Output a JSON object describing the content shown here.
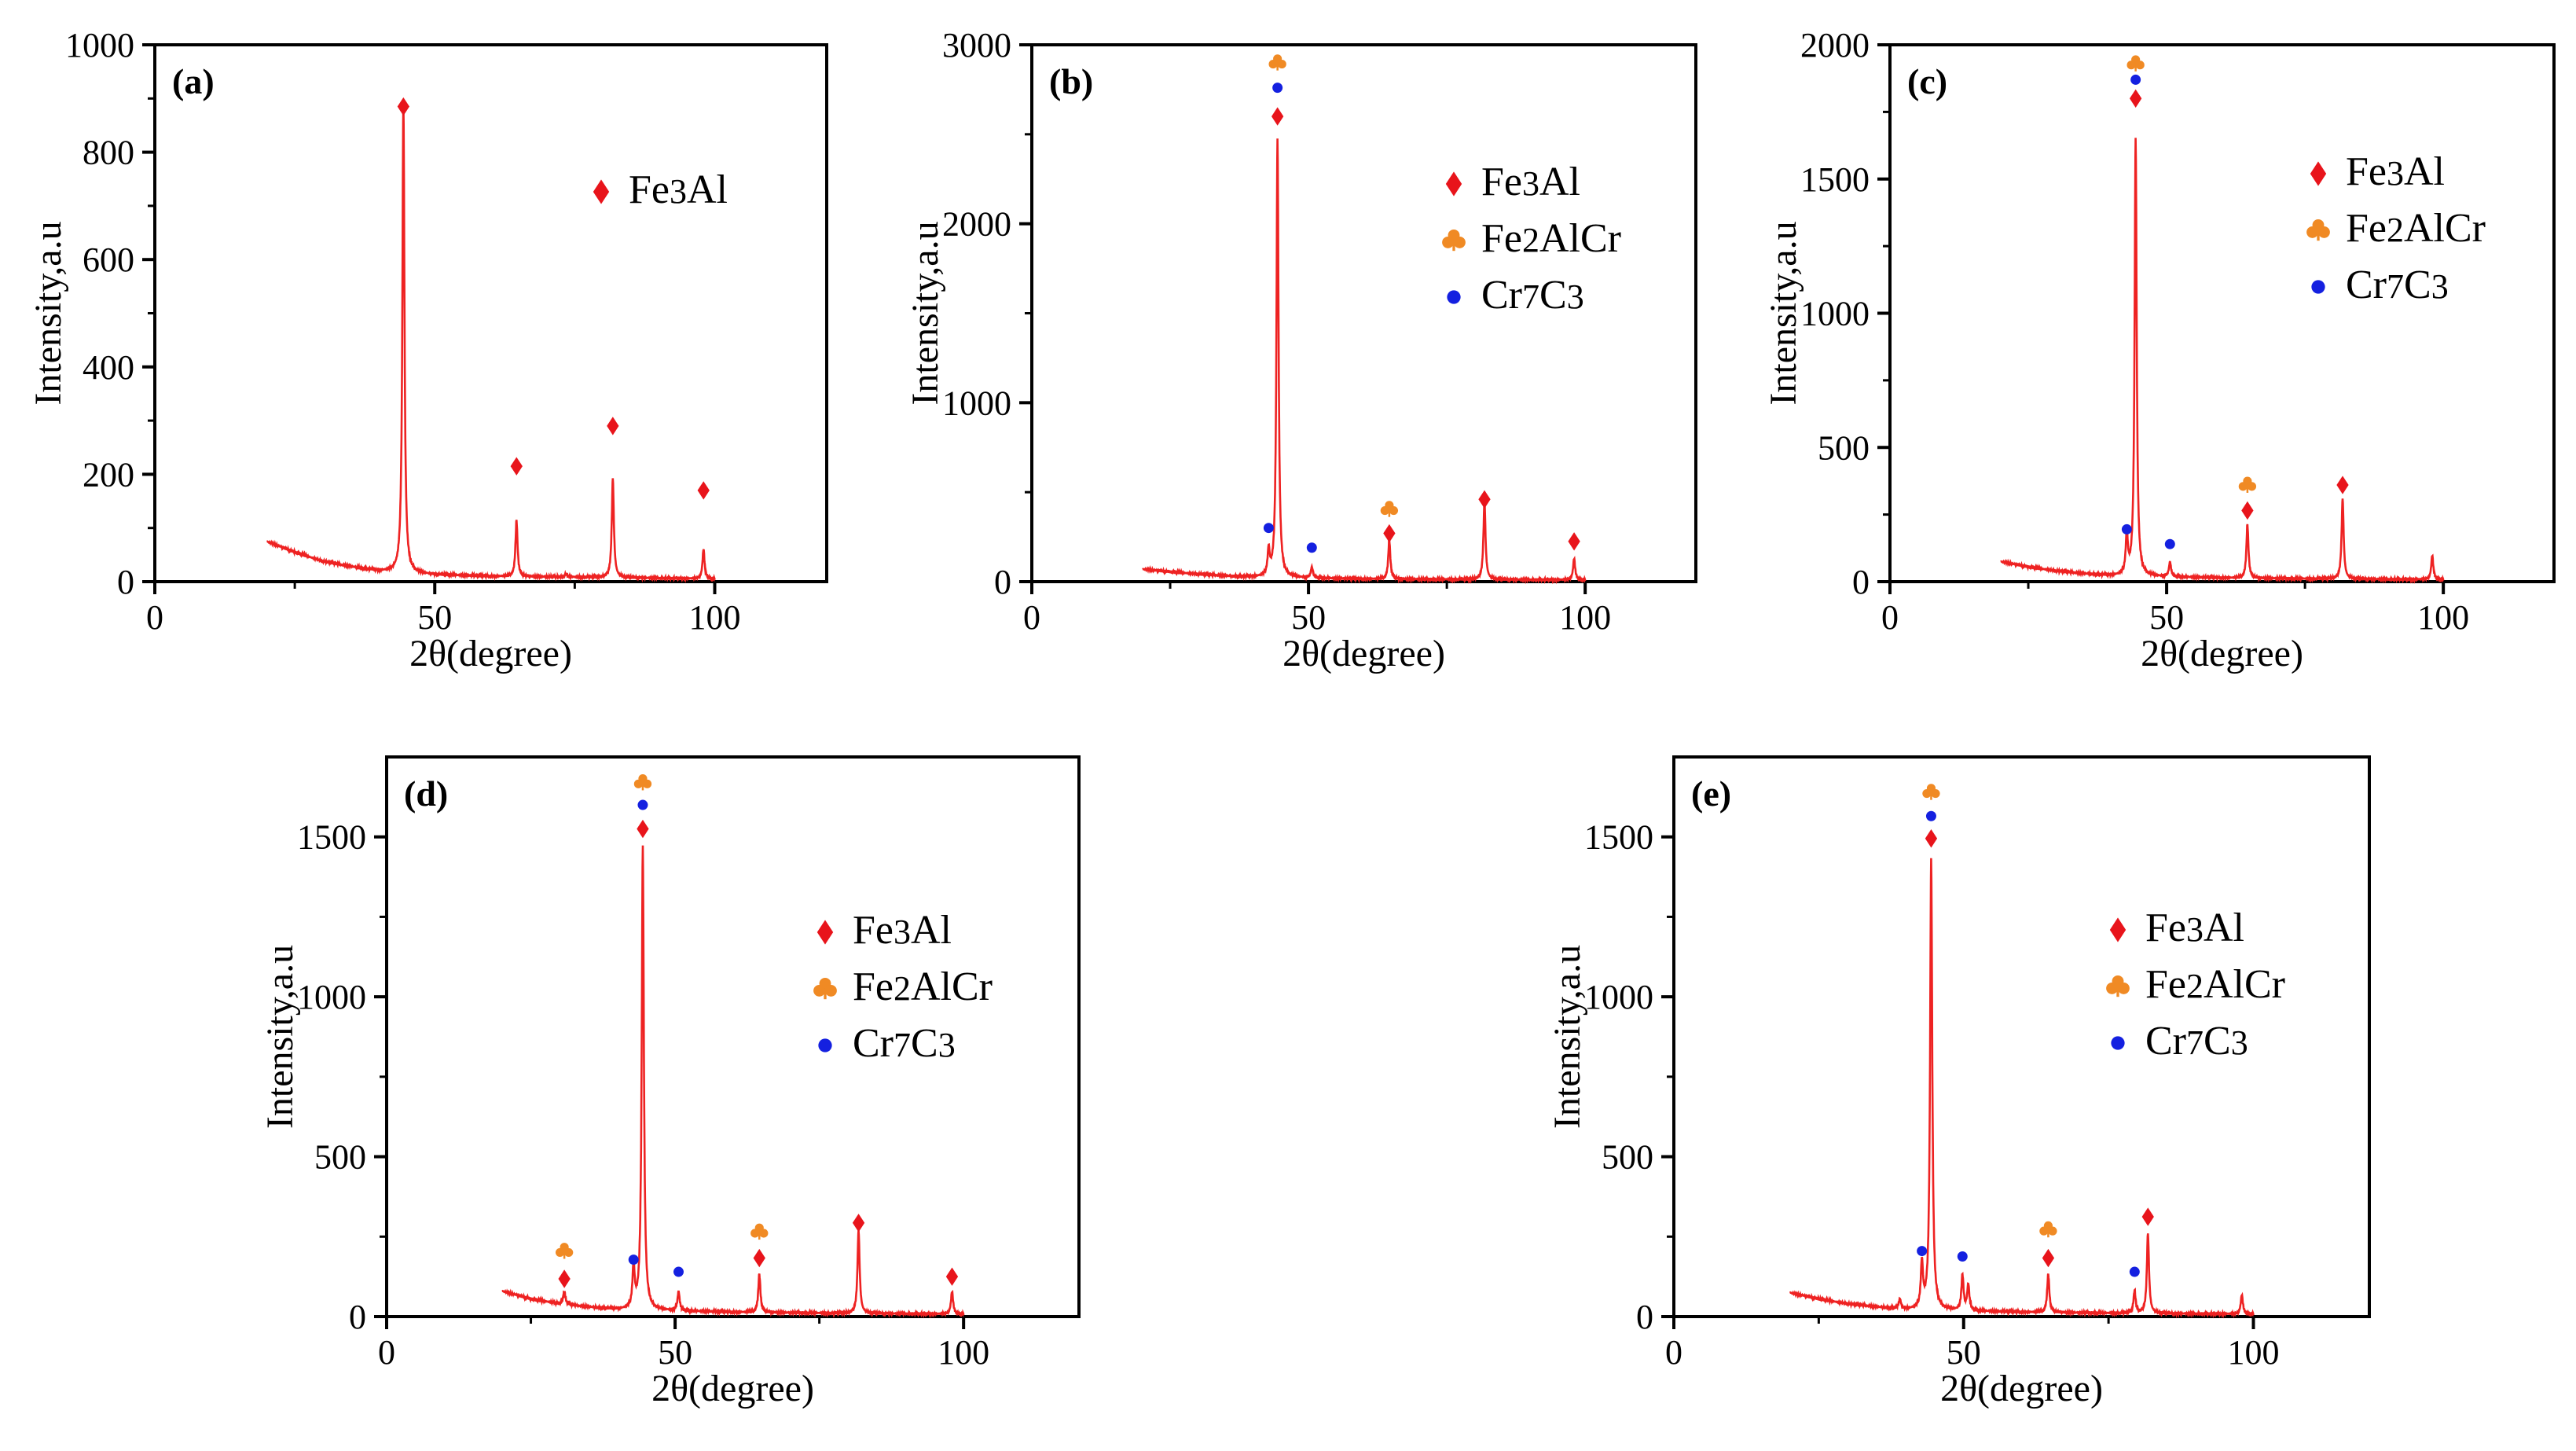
{
  "xlabel": "2θ(degree)",
  "ylabel": "Intensity,a.u",
  "colors": {
    "line": "#ee2222",
    "Fe3Al": "#e8141b",
    "Fe2AlCr": "#f08a24",
    "Cr7C3": "#1420e0"
  },
  "legend_labels": {
    "Fe3Al": [
      "Fe",
      "3",
      "Al"
    ],
    "Fe2AlCr": [
      "Fe",
      "2",
      "AlCr"
    ],
    "Cr7C3": [
      "Cr",
      "7",
      "C",
      "3"
    ]
  },
  "chart_data": [
    {
      "type": "line",
      "panel": "(a)",
      "xlim": [
        0,
        120
      ],
      "ylim": [
        0,
        1000
      ],
      "xticks": [
        0,
        50,
        100
      ],
      "yticks": [
        0,
        200,
        400,
        600,
        800,
        1000
      ],
      "legend": [
        "Fe3Al"
      ],
      "baseline": [
        [
          20,
          75
        ],
        [
          25,
          55
        ],
        [
          30,
          38
        ],
        [
          35,
          28
        ],
        [
          40,
          20
        ],
        [
          50,
          13
        ],
        [
          60,
          10
        ],
        [
          80,
          8
        ],
        [
          100,
          5
        ]
      ],
      "peaks": [
        [
          44.4,
          880
        ],
        [
          64.6,
          105
        ],
        [
          73.4,
          6
        ],
        [
          81.8,
          185
        ],
        [
          98.0,
          55
        ]
      ],
      "markers": [
        {
          "phase": "Fe3Al",
          "x": 44.4,
          "y": 885
        },
        {
          "phase": "Fe3Al",
          "x": 64.6,
          "y": 215
        },
        {
          "phase": "Fe3Al",
          "x": 81.8,
          "y": 290
        },
        {
          "phase": "Fe3Al",
          "x": 98.0,
          "y": 170
        }
      ]
    },
    {
      "type": "line",
      "panel": "(b)",
      "xlim": [
        0,
        120
      ],
      "ylim": [
        0,
        3000
      ],
      "xticks": [
        0,
        50,
        100
      ],
      "yticks": [
        0,
        1000,
        2000,
        3000
      ],
      "legend": [
        "Fe3Al",
        "Fe2AlCr",
        "Cr7C3"
      ],
      "baseline": [
        [
          20,
          70
        ],
        [
          25,
          55
        ],
        [
          30,
          42
        ],
        [
          35,
          32
        ],
        [
          40,
          25
        ],
        [
          50,
          20
        ],
        [
          60,
          15
        ],
        [
          80,
          12
        ],
        [
          100,
          10
        ]
      ],
      "peaks": [
        [
          42.8,
          140
        ],
        [
          44.4,
          2450
        ],
        [
          50.6,
          60
        ],
        [
          64.6,
          220
        ],
        [
          81.8,
          440
        ],
        [
          98.0,
          120
        ]
      ],
      "markers": [
        {
          "phase": "Fe2AlCr",
          "x": 44.4,
          "y": 2900
        },
        {
          "phase": "Cr7C3",
          "x": 44.4,
          "y": 2760
        },
        {
          "phase": "Fe3Al",
          "x": 44.4,
          "y": 2600
        },
        {
          "phase": "Cr7C3",
          "x": 42.8,
          "y": 300
        },
        {
          "phase": "Cr7C3",
          "x": 50.6,
          "y": 190
        },
        {
          "phase": "Fe2AlCr",
          "x": 64.6,
          "y": 405
        },
        {
          "phase": "Fe3Al",
          "x": 64.6,
          "y": 270
        },
        {
          "phase": "Fe3Al",
          "x": 81.8,
          "y": 460
        },
        {
          "phase": "Fe3Al",
          "x": 98.0,
          "y": 225
        }
      ]
    },
    {
      "type": "line",
      "panel": "(c)",
      "xlim": [
        0,
        120
      ],
      "ylim": [
        0,
        2000
      ],
      "xticks": [
        0,
        50,
        100
      ],
      "yticks": [
        0,
        500,
        1000,
        1500,
        2000
      ],
      "legend": [
        "Fe3Al",
        "Fe2AlCr",
        "Cr7C3"
      ],
      "baseline": [
        [
          20,
          75
        ],
        [
          25,
          55
        ],
        [
          30,
          40
        ],
        [
          35,
          30
        ],
        [
          40,
          22
        ],
        [
          50,
          18
        ],
        [
          60,
          14
        ],
        [
          80,
          10
        ],
        [
          100,
          8
        ]
      ],
      "peaks": [
        [
          42.8,
          150
        ],
        [
          44.4,
          1630
        ],
        [
          50.6,
          55
        ],
        [
          64.6,
          200
        ],
        [
          81.8,
          300
        ],
        [
          98.0,
          90
        ]
      ],
      "markers": [
        {
          "phase": "Fe2AlCr",
          "x": 44.4,
          "y": 1930
        },
        {
          "phase": "Cr7C3",
          "x": 44.4,
          "y": 1870
        },
        {
          "phase": "Fe3Al",
          "x": 44.4,
          "y": 1800
        },
        {
          "phase": "Cr7C3",
          "x": 42.8,
          "y": 195
        },
        {
          "phase": "Cr7C3",
          "x": 50.6,
          "y": 140
        },
        {
          "phase": "Fe2AlCr",
          "x": 64.6,
          "y": 360
        },
        {
          "phase": "Fe3Al",
          "x": 64.6,
          "y": 265
        },
        {
          "phase": "Fe3Al",
          "x": 81.8,
          "y": 360
        }
      ]
    },
    {
      "type": "line",
      "panel": "(d)",
      "xlim": [
        0,
        120
      ],
      "ylim": [
        0,
        1750
      ],
      "xticks": [
        0,
        50,
        100
      ],
      "yticks": [
        0,
        500,
        1000,
        1500
      ],
      "legend": [
        "Fe3Al",
        "Fe2AlCr",
        "Cr7C3"
      ],
      "baseline": [
        [
          20,
          80
        ],
        [
          25,
          55
        ],
        [
          30,
          40
        ],
        [
          35,
          30
        ],
        [
          40,
          22
        ],
        [
          50,
          18
        ],
        [
          60,
          14
        ],
        [
          80,
          10
        ],
        [
          100,
          8
        ]
      ],
      "peaks": [
        [
          30.8,
          40
        ],
        [
          42.8,
          130
        ],
        [
          44.4,
          1450
        ],
        [
          50.6,
          60
        ],
        [
          64.6,
          120
        ],
        [
          81.8,
          260
        ],
        [
          98.0,
          70
        ]
      ],
      "markers": [
        {
          "phase": "Fe2AlCr",
          "x": 30.8,
          "y": 205
        },
        {
          "phase": "Fe3Al",
          "x": 30.8,
          "y": 118
        },
        {
          "phase": "Cr7C3",
          "x": 42.8,
          "y": 178
        },
        {
          "phase": "Fe2AlCr",
          "x": 44.4,
          "y": 1670
        },
        {
          "phase": "Cr7C3",
          "x": 44.4,
          "y": 1600
        },
        {
          "phase": "Fe3Al",
          "x": 44.4,
          "y": 1525
        },
        {
          "phase": "Cr7C3",
          "x": 50.6,
          "y": 140
        },
        {
          "phase": "Fe2AlCr",
          "x": 64.6,
          "y": 265
        },
        {
          "phase": "Fe3Al",
          "x": 64.6,
          "y": 183
        },
        {
          "phase": "Fe3Al",
          "x": 81.8,
          "y": 293
        },
        {
          "phase": "Fe3Al",
          "x": 98.0,
          "y": 125
        }
      ]
    },
    {
      "type": "line",
      "panel": "(e)",
      "xlim": [
        0,
        120
      ],
      "ylim": [
        0,
        1750
      ],
      "xticks": [
        0,
        50,
        100
      ],
      "yticks": [
        0,
        500,
        1000,
        1500
      ],
      "legend": [
        "Fe3Al",
        "Fe2AlCr",
        "Cr7C3"
      ],
      "baseline": [
        [
          20,
          75
        ],
        [
          25,
          55
        ],
        [
          30,
          40
        ],
        [
          35,
          30
        ],
        [
          40,
          22
        ],
        [
          50,
          18
        ],
        [
          60,
          14
        ],
        [
          80,
          10
        ],
        [
          100,
          8
        ]
      ],
      "peaks": [
        [
          39.0,
          30
        ],
        [
          42.8,
          140
        ],
        [
          44.4,
          1410
        ],
        [
          49.8,
          110
        ],
        [
          50.8,
          80
        ],
        [
          64.6,
          120
        ],
        [
          79.5,
          70
        ],
        [
          81.8,
          250
        ],
        [
          98.0,
          60
        ]
      ],
      "markers": [
        {
          "phase": "Cr7C3",
          "x": 42.8,
          "y": 205
        },
        {
          "phase": "Fe2AlCr",
          "x": 44.4,
          "y": 1640
        },
        {
          "phase": "Cr7C3",
          "x": 44.4,
          "y": 1565
        },
        {
          "phase": "Fe3Al",
          "x": 44.4,
          "y": 1495
        },
        {
          "phase": "Cr7C3",
          "x": 49.8,
          "y": 188
        },
        {
          "phase": "Fe2AlCr",
          "x": 64.6,
          "y": 272
        },
        {
          "phase": "Fe3Al",
          "x": 64.6,
          "y": 183
        },
        {
          "phase": "Cr7C3",
          "x": 79.5,
          "y": 140
        },
        {
          "phase": "Fe3Al",
          "x": 81.8,
          "y": 312
        }
      ]
    }
  ]
}
